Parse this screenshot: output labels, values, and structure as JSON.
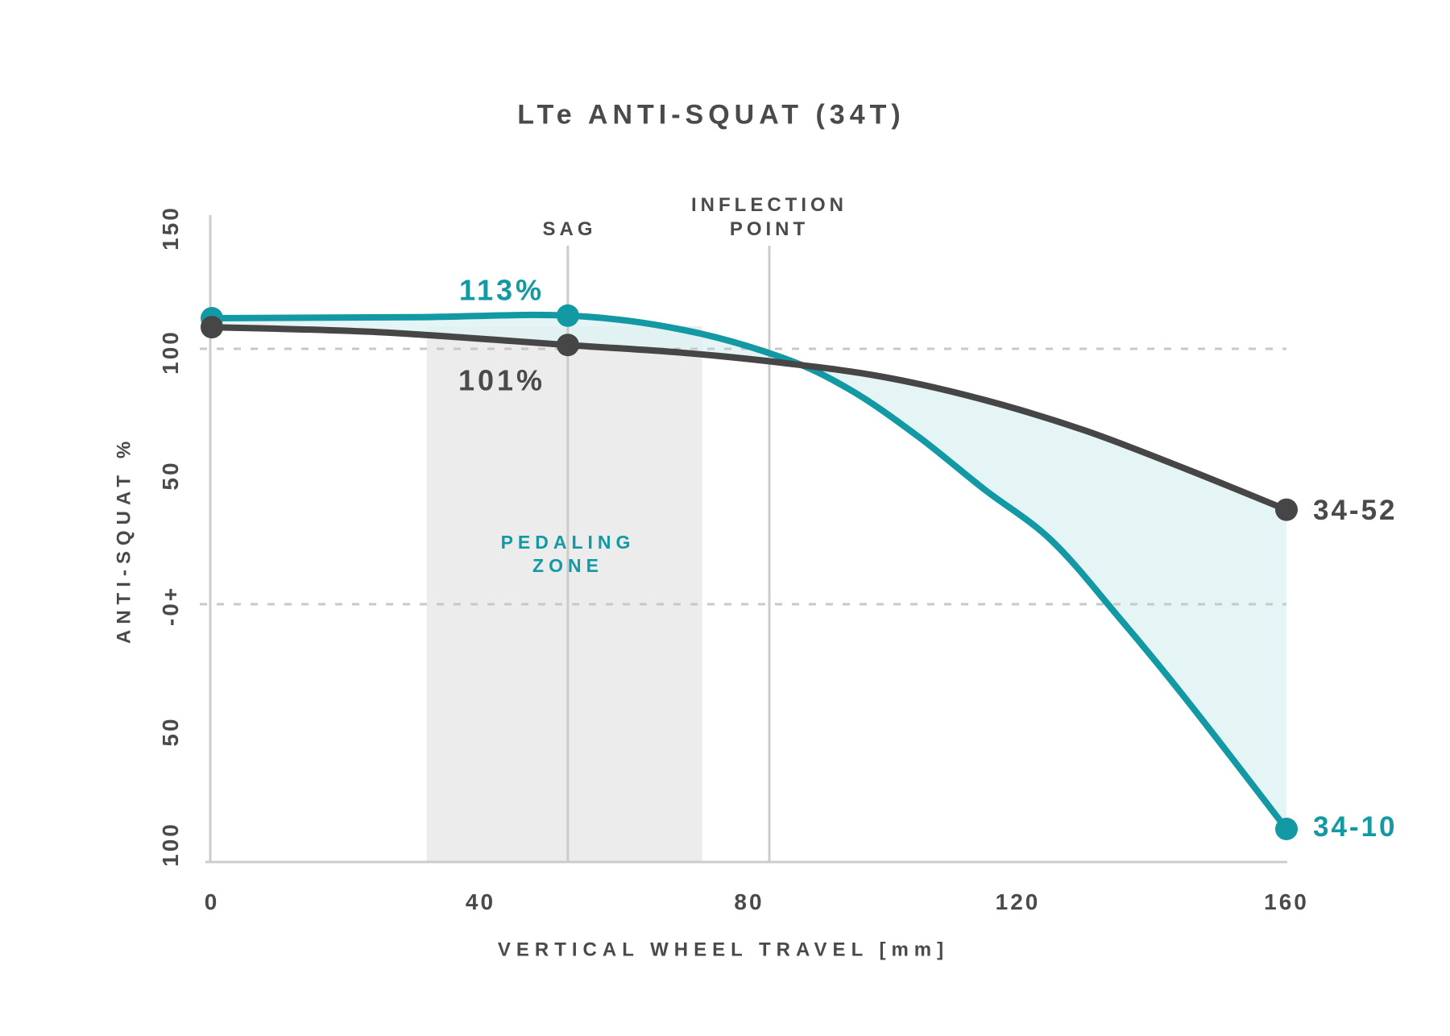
{
  "title": "LTe ANTI-SQUAT (34T)",
  "colors": {
    "teal": "#1399A4",
    "dark": "#4A4A4A",
    "curve_dark": "#464646",
    "fill_between": "#E1F2F3",
    "pedaling_zone_fill": "#ECECEC",
    "axis_line": "#CCCCCC",
    "dashed_line": "#C8C8C8",
    "background": "#FFFFFF"
  },
  "annotations": {
    "sag_label": "SAG",
    "inflection_line1": "INFLECTION",
    "inflection_line2": "POINT",
    "pedaling_line1": "PEDALING",
    "pedaling_line2": "ZONE",
    "teal_value_label": "113%",
    "dark_value_label": "101%"
  },
  "chart_data": {
    "type": "line",
    "title": "LTe ANTI-SQUAT (34T)",
    "xlabel": "VERTICAL WHEEL TRAVEL [mm]",
    "ylabel": "ANTI-SQUAT %",
    "x_ticks": [
      "0",
      "40",
      "80",
      "120",
      "160"
    ],
    "x_tick_values": [
      0,
      40,
      80,
      120,
      160
    ],
    "y_ticks": [
      "150",
      "100",
      "50",
      "-0+",
      "50",
      "100"
    ],
    "y_tick_values": [
      150,
      100,
      50,
      0,
      -50,
      -100
    ],
    "xlim": [
      0,
      160
    ],
    "ylim": [
      -100,
      152
    ],
    "grid": "dashed horizontal at 100 and 0",
    "gridlines_pct": [
      100,
      0
    ],
    "legend_position": "end-of-line labels",
    "sag_mm": 53,
    "inflection_mm": 83,
    "pedaling_zone_mm": [
      32,
      73
    ],
    "series": [
      {
        "name": "34-10",
        "color": "#1399A4",
        "sag_value_pct": 113,
        "end_value_pct": -88,
        "dot_mm": [
          0,
          53,
          160
        ],
        "points": [
          [
            0,
            112
          ],
          [
            30,
            112.4
          ],
          [
            53,
            113
          ],
          [
            70,
            107.5
          ],
          [
            85,
            96.5
          ],
          [
            95,
            84
          ],
          [
            105,
            66
          ],
          [
            115,
            45
          ],
          [
            125,
            25
          ],
          [
            135,
            -5
          ],
          [
            145,
            -37
          ],
          [
            160,
            -88
          ]
        ]
      },
      {
        "name": "34-52",
        "color": "#464646",
        "sag_value_pct": 101,
        "end_value_pct": 37,
        "dot_mm": [
          0,
          53,
          160
        ],
        "points": [
          [
            0,
            108.5
          ],
          [
            25,
            106.5
          ],
          [
            53,
            101.5
          ],
          [
            70,
            98.5
          ],
          [
            85,
            94.5
          ],
          [
            100,
            89
          ],
          [
            115,
            80
          ],
          [
            130,
            68
          ],
          [
            145,
            53
          ],
          [
            160,
            37
          ]
        ]
      }
    ]
  }
}
